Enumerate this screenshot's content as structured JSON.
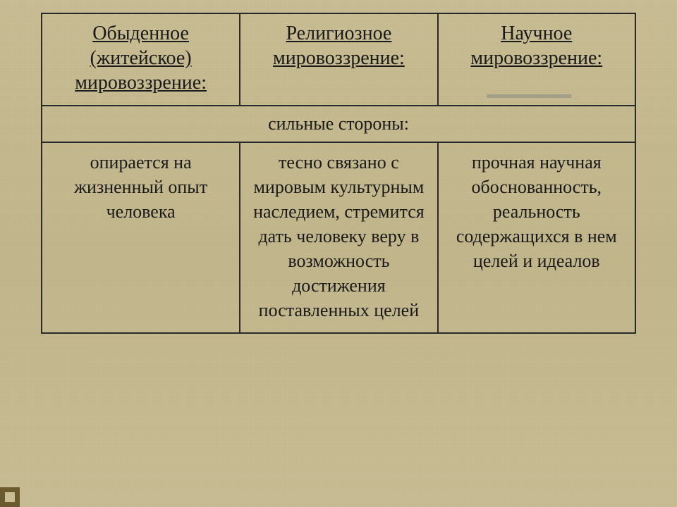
{
  "table": {
    "border_color": "#2a2a2a",
    "text_color": "#1a1a1a",
    "background": "#c9bd95",
    "font_family": "Times New Roman",
    "columns": [
      {
        "key": "everyday",
        "header": "Обыденное (житейское) мировоззрение:"
      },
      {
        "key": "religious",
        "header": "Религиозное мировоззрение:"
      },
      {
        "key": "scientific",
        "header": "Научное мировоззрение:"
      }
    ],
    "section_label": "сильные стороны:",
    "rows": {
      "everyday": "опирается на жизненный опыт человека",
      "religious": "тесно связано с мировым культурным наследием, стремится дать человеку веру в возможность достижения поставленных целей",
      "scientific": "прочная научная обоснованность, реальность содержащихся в нем целей и идеалов"
    },
    "header_fontsize": 28,
    "body_fontsize": 26,
    "header_underline": true
  },
  "accent": {
    "corner_color": "#6a5a2e"
  }
}
